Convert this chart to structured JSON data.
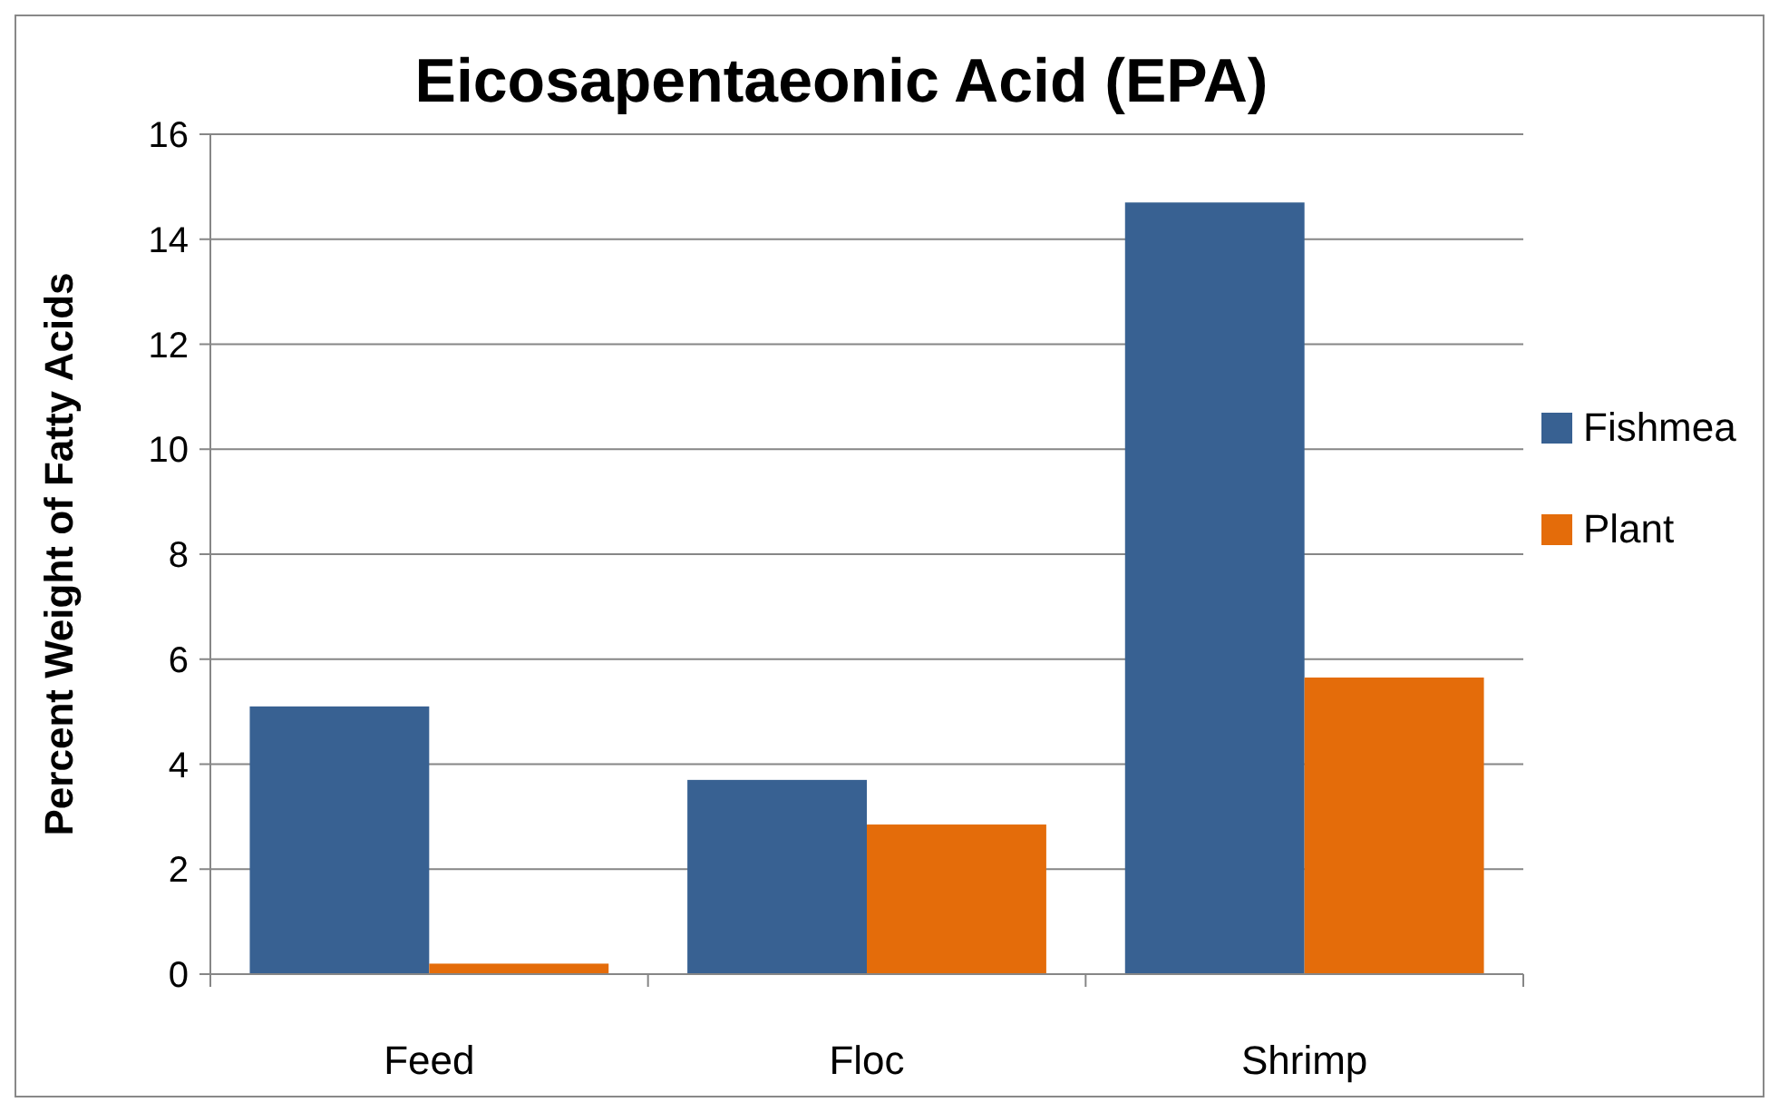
{
  "chart_data": {
    "type": "bar",
    "title": "Eicosapentaeonic Acid (EPA)",
    "ylabel": "Percent Weight of Fatty Acids",
    "categories": [
      "Feed",
      "Floc",
      "Shrimp"
    ],
    "series": [
      {
        "name": "Fishmea",
        "color": "#386192",
        "values": [
          5.1,
          3.7,
          14.7
        ]
      },
      {
        "name": "Plant",
        "color": "#e46c0a",
        "values": [
          0.2,
          2.85,
          5.65
        ]
      }
    ],
    "ylim": [
      0,
      16
    ],
    "yticks": [
      0,
      2,
      4,
      6,
      8,
      10,
      12,
      14,
      16
    ],
    "grid": "y",
    "legend": "right"
  }
}
